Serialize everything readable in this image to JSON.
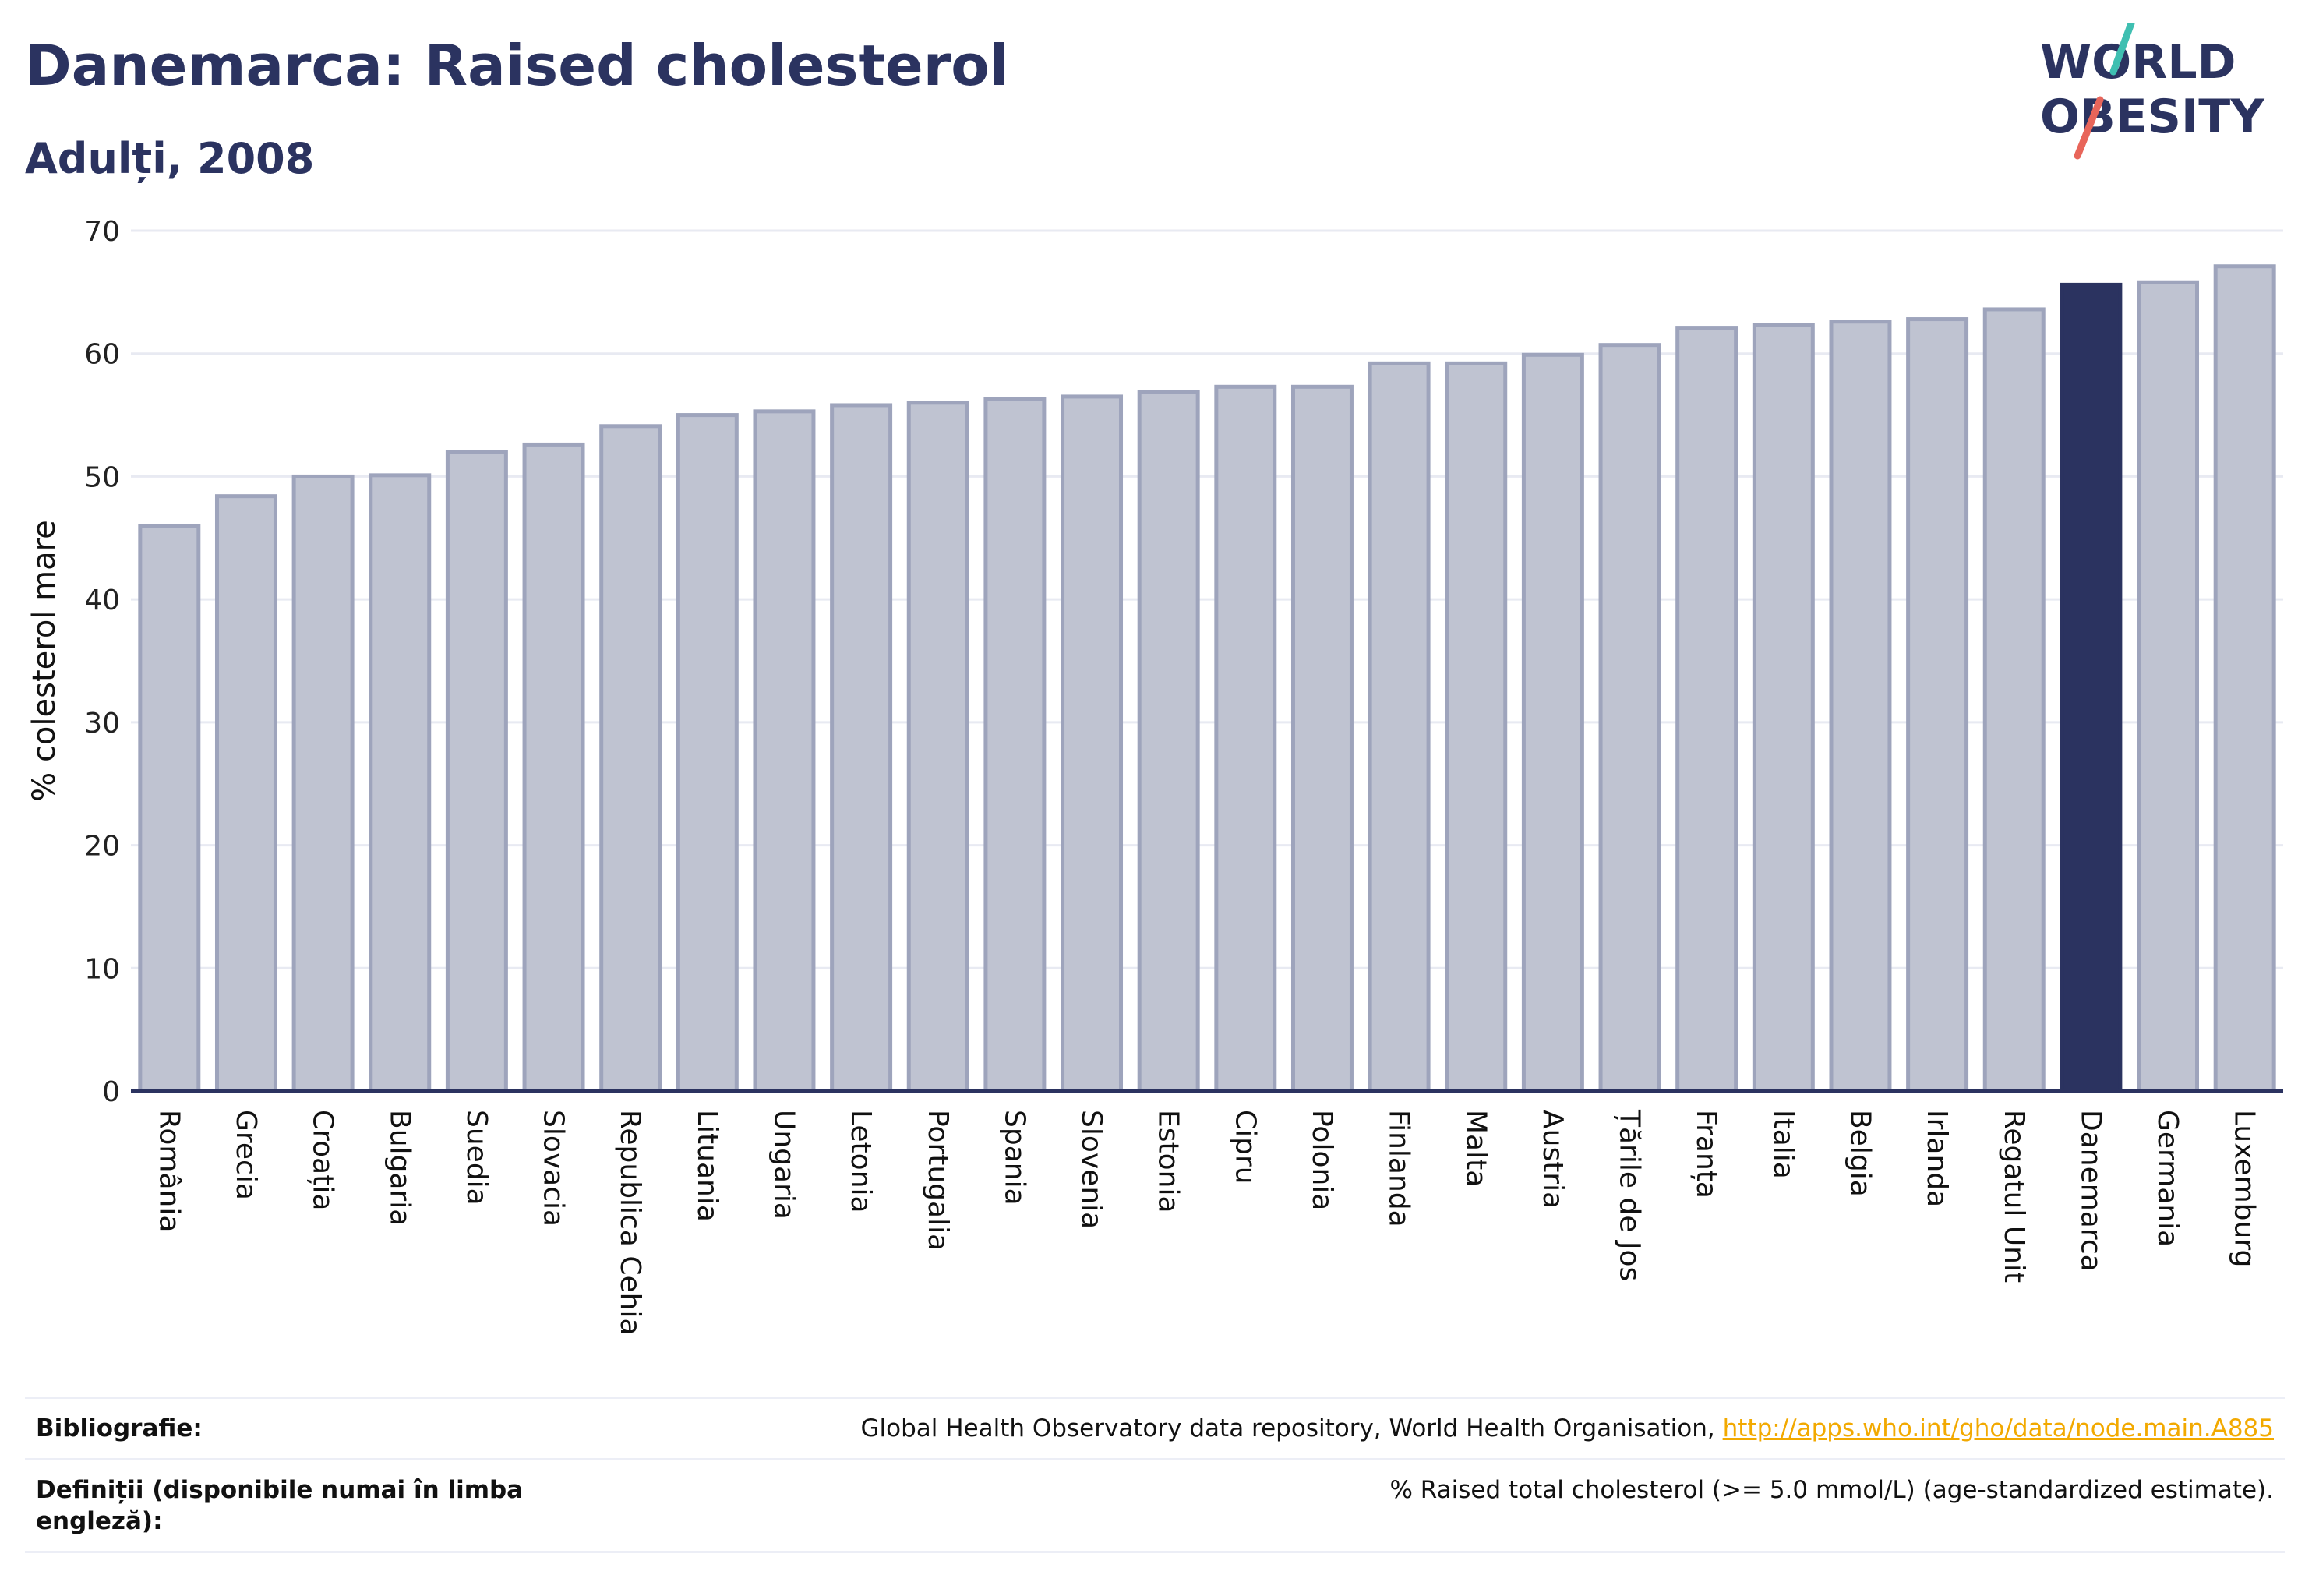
{
  "header": {
    "title": "Danemarca: Raised cholesterol",
    "subtitle": "Adulți, 2008"
  },
  "logo": {
    "line1": "WORLD",
    "line2": "OBESITY",
    "colors": {
      "text": "#2b3360",
      "slash_top": "#3fbfb1",
      "slash_bottom": "#e8655a"
    }
  },
  "colors": {
    "bar_fill": "#bfc3d1",
    "bar_stroke": "#9ea4bc",
    "highlight": "#2b3360",
    "grid": "#e8eaf2",
    "axis": "#2b3360"
  },
  "chart_data": {
    "type": "bar",
    "ylabel": "% colesterol mare",
    "ylim": [
      0,
      70
    ],
    "yticks": [
      0,
      10,
      20,
      30,
      40,
      50,
      60,
      70
    ],
    "grid": true,
    "highlight": "Danemarca",
    "categories": [
      "România",
      "Grecia",
      "Croația",
      "Bulgaria",
      "Suedia",
      "Slovacia",
      "Republica Cehia",
      "Lituania",
      "Ungaria",
      "Letonia",
      "Portugalia",
      "Spania",
      "Slovenia",
      "Estonia",
      "Cipru",
      "Polonia",
      "Finlanda",
      "Malta",
      "Austria",
      "Țările de Jos",
      "Franța",
      "Italia",
      "Belgia",
      "Irlanda",
      "Regatul Unit",
      "Danemarca",
      "Germania",
      "Luxemburg"
    ],
    "values": [
      46.0,
      48.4,
      50.0,
      50.1,
      52.0,
      52.6,
      54.1,
      55.0,
      55.3,
      55.8,
      56.0,
      56.3,
      56.5,
      56.9,
      57.3,
      57.3,
      59.2,
      59.2,
      59.9,
      60.7,
      62.1,
      62.3,
      62.6,
      62.8,
      63.6,
      65.6,
      65.8,
      67.1
    ]
  },
  "footer": {
    "bibliography_label": "Bibliografie:",
    "bibliography_text": "Global Health Observatory data repository, World Health Organisation, ",
    "bibliography_link": "http://apps.who.int/gho/data/node.main.A885",
    "definitions_label": "Definiții (disponibile numai în limba engleză):",
    "definitions_text": "% Raised total cholesterol (>= 5.0 mmol/L) (age-standardized estimate)."
  }
}
